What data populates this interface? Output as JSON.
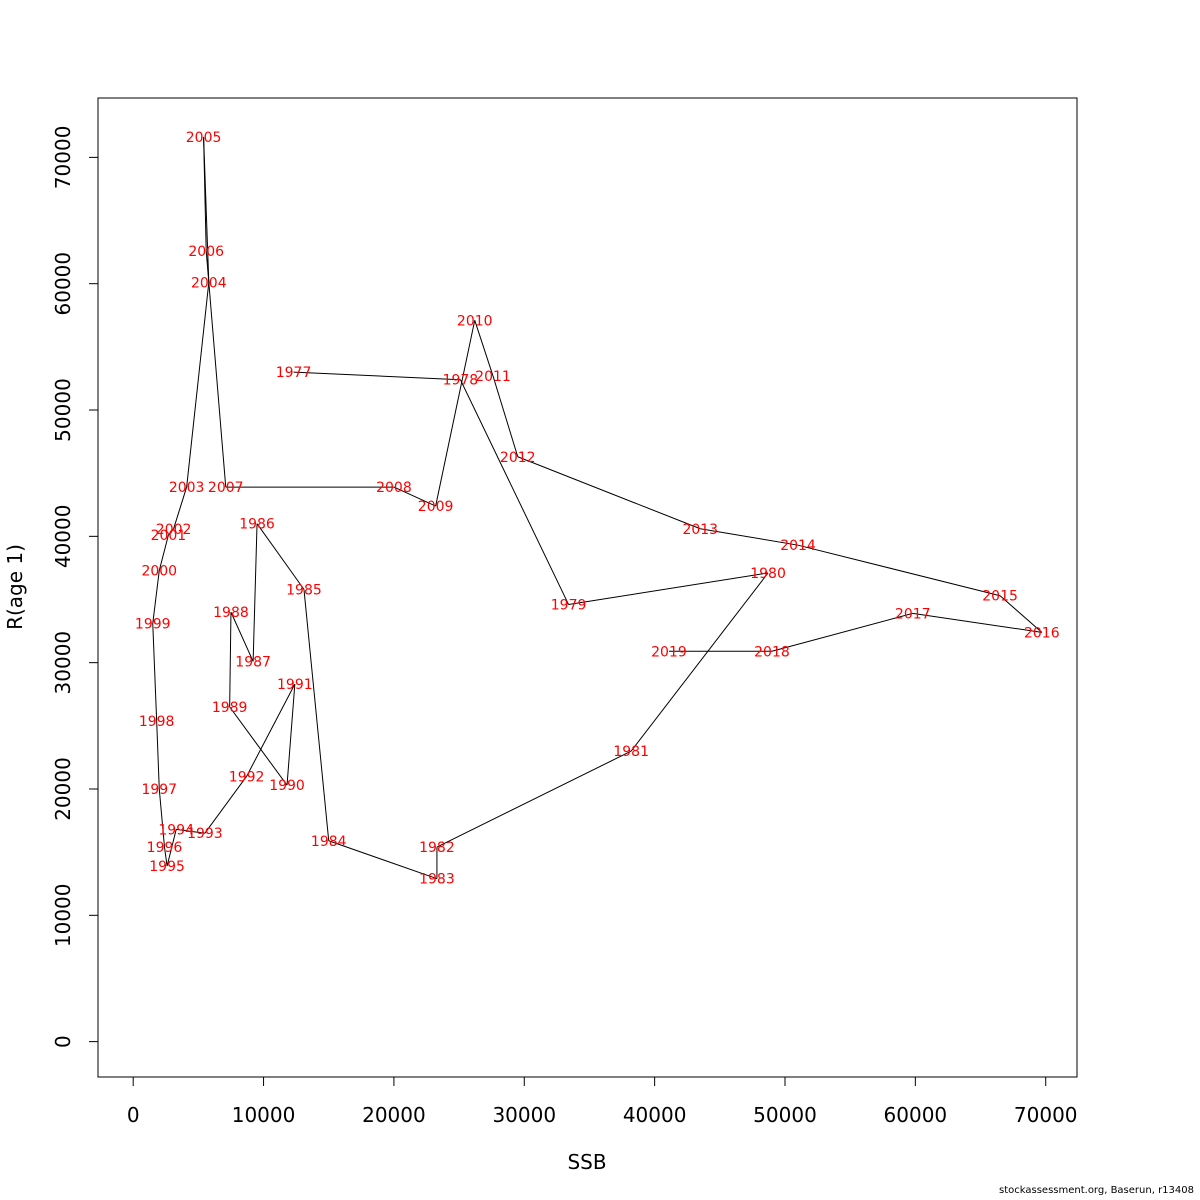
{
  "chart_data": {
    "type": "scatter",
    "xlabel": "SSB",
    "ylabel": "R(age 1)",
    "xlim": [
      -2700,
      72400
    ],
    "ylim": [
      -2800,
      74700
    ],
    "x_ticks": [
      0,
      10000,
      20000,
      30000,
      40000,
      50000,
      60000,
      70000
    ],
    "y_ticks": [
      0,
      10000,
      20000,
      30000,
      40000,
      50000,
      60000,
      70000
    ],
    "connected": true,
    "line_color": "#000000",
    "label_color": "#ff0000",
    "points": [
      {
        "year": "1977",
        "x": 12300,
        "y": 53000
      },
      {
        "year": "1978",
        "x": 25100,
        "y": 52400
      },
      {
        "year": "1979",
        "x": 33400,
        "y": 34600
      },
      {
        "year": "1980",
        "x": 48700,
        "y": 37100
      },
      {
        "year": "1981",
        "x": 38200,
        "y": 23000
      },
      {
        "year": "1982",
        "x": 23300,
        "y": 15400
      },
      {
        "year": "1983",
        "x": 23300,
        "y": 12900
      },
      {
        "year": "1984",
        "x": 15000,
        "y": 15900
      },
      {
        "year": "1985",
        "x": 13100,
        "y": 35800
      },
      {
        "year": "1986",
        "x": 9500,
        "y": 41000
      },
      {
        "year": "1987",
        "x": 9200,
        "y": 30100
      },
      {
        "year": "1988",
        "x": 7500,
        "y": 34000
      },
      {
        "year": "1989",
        "x": 7400,
        "y": 26500
      },
      {
        "year": "1990",
        "x": 11800,
        "y": 20300
      },
      {
        "year": "1991",
        "x": 12400,
        "y": 28300
      },
      {
        "year": "1992",
        "x": 8700,
        "y": 21000
      },
      {
        "year": "1993",
        "x": 5500,
        "y": 16500
      },
      {
        "year": "1994",
        "x": 3300,
        "y": 16800
      },
      {
        "year": "1995",
        "x": 2600,
        "y": 13900
      },
      {
        "year": "1996",
        "x": 2400,
        "y": 15400
      },
      {
        "year": "1997",
        "x": 2000,
        "y": 20000
      },
      {
        "year": "1998",
        "x": 1800,
        "y": 25400
      },
      {
        "year": "1999",
        "x": 1500,
        "y": 33100
      },
      {
        "year": "2000",
        "x": 2000,
        "y": 37300
      },
      {
        "year": "2001",
        "x": 2700,
        "y": 40100
      },
      {
        "year": "2002",
        "x": 3100,
        "y": 40600
      },
      {
        "year": "2003",
        "x": 4100,
        "y": 43900
      },
      {
        "year": "2004",
        "x": 5800,
        "y": 60100
      },
      {
        "year": "2005",
        "x": 5400,
        "y": 71600
      },
      {
        "year": "2006",
        "x": 5600,
        "y": 62600
      },
      {
        "year": "2007",
        "x": 7100,
        "y": 43900
      },
      {
        "year": "2008",
        "x": 20000,
        "y": 43900
      },
      {
        "year": "2009",
        "x": 23200,
        "y": 42400
      },
      {
        "year": "2010",
        "x": 26200,
        "y": 57100
      },
      {
        "year": "2011",
        "x": 27600,
        "y": 52700
      },
      {
        "year": "2012",
        "x": 29500,
        "y": 46300
      },
      {
        "year": "2013",
        "x": 43500,
        "y": 40600
      },
      {
        "year": "2014",
        "x": 51000,
        "y": 39300
      },
      {
        "year": "2015",
        "x": 66500,
        "y": 35300
      },
      {
        "year": "2016",
        "x": 69700,
        "y": 32400
      },
      {
        "year": "2017",
        "x": 59800,
        "y": 33900
      },
      {
        "year": "2018",
        "x": 49000,
        "y": 30900
      },
      {
        "year": "2019",
        "x": 41100,
        "y": 30900
      }
    ]
  },
  "footer": "stockassessment.org, Baserun, r13408"
}
